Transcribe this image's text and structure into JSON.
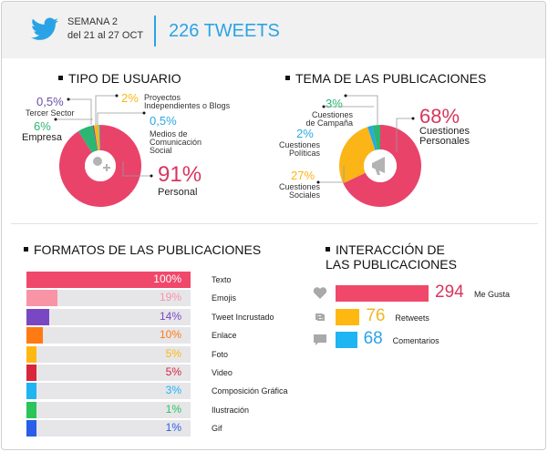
{
  "header": {
    "icon": "twitter-bird-icon",
    "week": "SEMANA 2",
    "dates": "del 21 al 27 OCT",
    "total": "226 TWEETS"
  },
  "chart_data": [
    {
      "type": "pie",
      "title": "TIPO DE USUARIO",
      "center_icon": "add-user-icon",
      "slices": [
        {
          "label": "Personal",
          "value": 91,
          "text": "91%",
          "color": "#e9436a"
        },
        {
          "label": "Empresa",
          "value": 6,
          "text": "6%",
          "color": "#2bb673"
        },
        {
          "label": "Tercer Sector",
          "value": 0.5,
          "text": "0,5%",
          "color": "#6a4fa3"
        },
        {
          "label": "Proyectos Independientes o Blogs",
          "value": 2,
          "text": "2%",
          "color": "#fbb516"
        },
        {
          "label": "Medios de Comunicación Social",
          "value": 0.5,
          "text": "0,5%",
          "color": "#29a9e0"
        }
      ]
    },
    {
      "type": "pie",
      "title": "TEMA DE LAS PUBLICACIONES",
      "center_icon": "megaphone-icon",
      "slices": [
        {
          "label": "Cuestiones Personales",
          "value": 68,
          "text": "68%",
          "color": "#e9436a"
        },
        {
          "label": "Cuestiones Sociales",
          "value": 27,
          "text": "27%",
          "color": "#fbb516"
        },
        {
          "label": "Cuestiones Políticas",
          "value": 2,
          "text": "2%",
          "color": "#29a9e0"
        },
        {
          "label": "Cuestiones de Campaña",
          "value": 3,
          "text": "3%",
          "color": "#2bb673"
        }
      ]
    },
    {
      "type": "bar",
      "orientation": "horizontal",
      "title": "FORMATOS DE LAS PUBLICACIONES",
      "xlim": [
        0,
        100
      ],
      "categories": [
        "Texto",
        "Emojis",
        "Tweet Incrustado",
        "Enlace",
        "Foto",
        "Video",
        "Composición Gráfica",
        "Ilustración",
        "Gif"
      ],
      "values": [
        100,
        19,
        14,
        10,
        5,
        5,
        3,
        1,
        1
      ],
      "labels": [
        "100%",
        "19%",
        "14%",
        "10%",
        "5%",
        "5%",
        "3%",
        "1%",
        "1%"
      ],
      "colors": [
        "#f0486a",
        "#f993a6",
        "#7a47c2",
        "#ff7a12",
        "#ffb812",
        "#d8263a",
        "#1fb4f2",
        "#2ac45a",
        "#2a5ee8"
      ]
    },
    {
      "type": "bar",
      "orientation": "horizontal",
      "title": "INTERACCIÓN DE LAS PUBLICACIONES",
      "categories": [
        "Me Gusta",
        "Retweets",
        "Comentarios"
      ],
      "values": [
        294,
        76,
        68
      ],
      "icons": [
        "heart-icon",
        "retweet-icon",
        "comment-icon"
      ],
      "colors": [
        "#f0486a",
        "#ffb812",
        "#1fb4f2"
      ],
      "value_colors": [
        "#d8365e",
        "#f0b52a",
        "#2aa3e6"
      ]
    }
  ]
}
